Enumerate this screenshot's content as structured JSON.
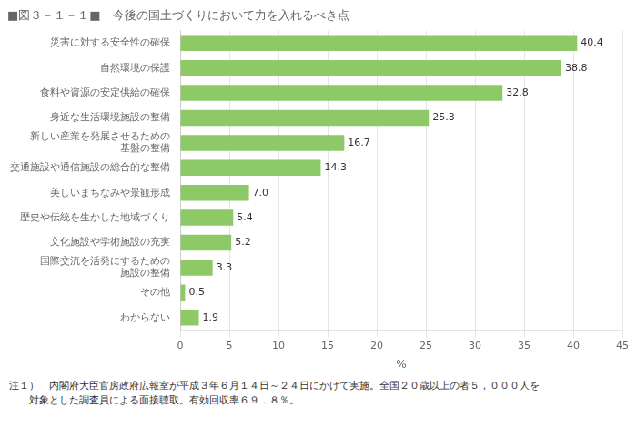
{
  "chart_data": {
    "type": "bar",
    "orientation": "horizontal",
    "title": "■図３－１－１■　今後の国土づくりにおいて力を入れるべき点",
    "categories": [
      "わからない",
      "その他",
      "国際交流を活発にするための\n施設の整備",
      "文化施設や学術施設の充実",
      "歴史や伝統を生かした地域づくり",
      "美しいまちなみや景観形成",
      "交通施設や通信施設の総合的な整備",
      "新しい産業を発展させるための\n基盤の整備",
      "身近な生活環境施設の整備",
      "食料や資源の安定供給の確保",
      "自然環境の保護",
      "災害に対する安全性の確保"
    ],
    "values": [
      1.9,
      0.5,
      3.3,
      5.2,
      5.4,
      7.0,
      14.3,
      16.7,
      25.3,
      32.8,
      38.8,
      40.4
    ],
    "value_labels": [
      "1.9",
      "0.5",
      "3.3",
      "5.2",
      "5.4",
      "7.0",
      "14.3",
      "16.7",
      "25.3",
      "32.8",
      "38.8",
      "40.4"
    ],
    "data_labels": true,
    "color": "#8DC966",
    "xlabel": "%",
    "xlim": [
      0,
      45
    ],
    "xticks": [
      0,
      5,
      10,
      15,
      20,
      25,
      30,
      35,
      40,
      45
    ],
    "grid": true,
    "annotations": [
      "注１）　内閣府大臣官房政府広報室が平成３年６月１４日～２４日にかけて実施。全国２０歳以上の者５，０００人を",
      "　　対象とした調査員による面接聴取。有効回収率６９．８％。"
    ]
  }
}
